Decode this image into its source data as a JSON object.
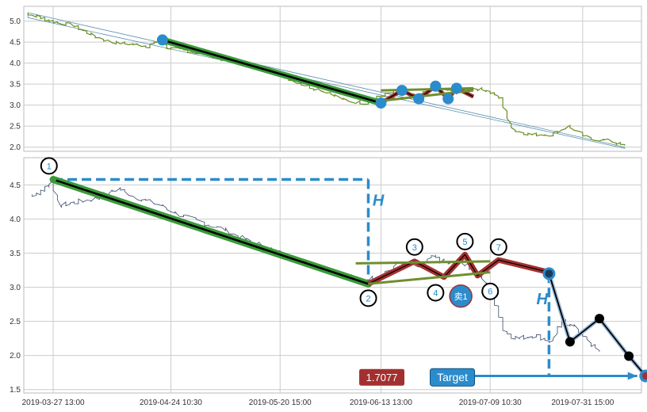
{
  "colors": {
    "price": "#6b8e23",
    "price_bottom": "#3a4a6a",
    "trend_green": "#3a9a3a",
    "wave_red": "#a33030",
    "blue": "#2b8ccc",
    "olive": "#6e8f2e",
    "grid": "#cccccc",
    "black": "#000000"
  },
  "chart_data": [
    {
      "type": "line",
      "panel": "top",
      "grid": true,
      "ylim": [
        1.9,
        5.35
      ],
      "x_domain": [
        "2019-03-20",
        "2019-08-14"
      ],
      "yticks": [
        "2.0",
        "2.5",
        "3.0",
        "3.5",
        "4.0",
        "4.5",
        "5.0"
      ],
      "series": [
        {
          "role": "price",
          "x": [
            "2019-03-21",
            "2019-03-24",
            "2019-03-27",
            "2019-04-01",
            "2019-04-05",
            "2019-04-10",
            "2019-04-15",
            "2019-04-19",
            "2019-04-22",
            "2019-04-24",
            "2019-04-28",
            "2019-05-03",
            "2019-05-08",
            "2019-05-13",
            "2019-05-18",
            "2019-05-22",
            "2019-05-27",
            "2019-06-01",
            "2019-06-05",
            "2019-06-10",
            "2019-06-13",
            "2019-06-18",
            "2019-06-22",
            "2019-06-26",
            "2019-07-01",
            "2019-07-05",
            "2019-07-09",
            "2019-07-12",
            "2019-07-15",
            "2019-07-19",
            "2019-07-24",
            "2019-07-28",
            "2019-08-02",
            "2019-08-07",
            "2019-08-11"
          ],
          "values": [
            5.2,
            5.1,
            5.0,
            4.9,
            4.7,
            4.5,
            4.45,
            4.4,
            4.55,
            4.35,
            4.3,
            4.2,
            4.05,
            3.95,
            3.8,
            3.65,
            3.45,
            3.3,
            3.1,
            3.05,
            3.2,
            3.35,
            3.2,
            3.45,
            3.3,
            3.4,
            3.35,
            3.15,
            2.4,
            2.3,
            2.3,
            2.5,
            2.2,
            2.15,
            2.0
          ]
        }
      ],
      "overlays": {
        "trend_channel": [
          [
            "2019-03-21",
            5.2
          ],
          [
            "2019-08-10",
            2.0
          ]
        ],
        "pole": [
          [
            "2019-04-22",
            4.55
          ],
          [
            "2019-06-13",
            3.05
          ]
        ],
        "flag_upper": [
          [
            "2019-06-13",
            3.35
          ],
          [
            "2019-07-05",
            3.4
          ]
        ],
        "flag_lower": [
          [
            "2019-06-13",
            3.1
          ],
          [
            "2019-07-05",
            3.35
          ]
        ],
        "wave": [
          [
            "2019-06-13",
            3.05
          ],
          [
            "2019-06-18",
            3.35
          ],
          [
            "2019-06-22",
            3.15
          ],
          [
            "2019-06-26",
            3.45
          ],
          [
            "2019-06-29",
            3.15
          ],
          [
            "2019-07-01",
            3.4
          ],
          [
            "2019-07-05",
            3.2
          ]
        ],
        "markers": [
          [
            "2019-04-22",
            4.55
          ],
          [
            "2019-06-13",
            3.05
          ],
          [
            "2019-06-18",
            3.35
          ],
          [
            "2019-06-22",
            3.15
          ],
          [
            "2019-06-26",
            3.45
          ],
          [
            "2019-06-29",
            3.15
          ],
          [
            "2019-07-01",
            3.4
          ]
        ]
      }
    },
    {
      "type": "line",
      "panel": "bottom",
      "grid": true,
      "ylim": [
        1.45,
        4.9
      ],
      "x_domain": [
        "2019-03-20",
        "2019-08-14"
      ],
      "yticks": [
        "1.5",
        "2.0",
        "2.5",
        "3.0",
        "3.5",
        "4.0",
        "4.5"
      ],
      "xticks": [
        {
          "x": "2019-03-27",
          "label": "2019-03-27 13:00"
        },
        {
          "x": "2019-04-24",
          "label": "2019-04-24 10:30"
        },
        {
          "x": "2019-05-20",
          "label": "2019-05-20 15:00"
        },
        {
          "x": "2019-06-13",
          "label": "2019-06-13 13:00"
        },
        {
          "x": "2019-07-09",
          "label": "2019-07-09 10:30"
        },
        {
          "x": "2019-07-31",
          "label": "2019-07-31 15:00"
        }
      ],
      "series": [
        {
          "role": "price",
          "x": [
            "2019-03-22",
            "2019-03-25",
            "2019-03-27",
            "2019-03-29",
            "2019-04-02",
            "2019-04-07",
            "2019-04-12",
            "2019-04-17",
            "2019-04-22",
            "2019-04-27",
            "2019-05-02",
            "2019-05-07",
            "2019-05-12",
            "2019-05-17",
            "2019-05-22",
            "2019-05-27",
            "2019-06-01",
            "2019-06-05",
            "2019-06-08",
            "2019-06-13",
            "2019-06-18",
            "2019-06-22",
            "2019-06-26",
            "2019-06-29",
            "2019-07-03",
            "2019-07-06",
            "2019-07-09",
            "2019-07-11",
            "2019-07-13",
            "2019-07-16",
            "2019-07-20",
            "2019-07-24",
            "2019-07-27",
            "2019-07-30",
            "2019-08-02",
            "2019-08-05"
          ],
          "values": [
            4.35,
            4.4,
            4.55,
            4.2,
            4.25,
            4.3,
            4.45,
            4.3,
            4.2,
            4.05,
            3.95,
            3.85,
            3.7,
            3.6,
            3.45,
            3.35,
            3.25,
            3.2,
            3.1,
            3.15,
            3.35,
            3.3,
            3.45,
            3.35,
            3.35,
            3.25,
            3.05,
            2.7,
            2.35,
            2.25,
            2.3,
            2.2,
            2.5,
            2.4,
            2.2,
            2.05
          ]
        }
      ],
      "overlays": {
        "pole": [
          [
            "2019-03-27",
            4.58
          ],
          [
            "2019-06-10",
            3.05
          ]
        ],
        "flag_upper": [
          [
            "2019-06-07",
            3.35
          ],
          [
            "2019-07-09",
            3.38
          ]
        ],
        "flag_lower": [
          [
            "2019-06-10",
            3.05
          ],
          [
            "2019-07-09",
            3.22
          ]
        ],
        "wave": [
          [
            "2019-06-10",
            3.05
          ],
          [
            "2019-06-21",
            3.38
          ],
          [
            "2019-06-28",
            3.15
          ],
          [
            "2019-07-03",
            3.48
          ],
          [
            "2019-07-06",
            3.17
          ],
          [
            "2019-07-11",
            3.4
          ],
          [
            "2019-07-23",
            3.22
          ]
        ],
        "projection": [
          [
            "2019-07-23",
            3.2
          ],
          [
            "2019-07-28",
            2.2
          ],
          [
            "2019-08-04",
            2.54
          ],
          [
            "2019-08-11",
            1.99
          ],
          [
            "2019-08-15",
            1.7
          ]
        ],
        "h_top": [
          [
            "2019-03-27",
            4.58
          ],
          [
            "2019-06-10",
            4.58
          ]
        ],
        "h_bottom": [
          [
            "2019-07-23",
            3.2
          ],
          [
            "2019-07-23",
            1.7
          ]
        ],
        "target_line": [
          [
            "2019-07-04",
            1.7
          ],
          [
            "2019-08-13",
            1.7
          ]
        ]
      },
      "point_labels": [
        {
          "text": "1",
          "x": "2019-03-26",
          "y": 4.78
        },
        {
          "text": "2",
          "x": "2019-06-10",
          "y": 2.84
        },
        {
          "text": "3",
          "x": "2019-06-21",
          "y": 3.59
        },
        {
          "text": "4",
          "x": "2019-06-26",
          "y": 2.92
        },
        {
          "text": "5",
          "x": "2019-07-03",
          "y": 3.67
        },
        {
          "text": "6",
          "x": "2019-07-09",
          "y": 2.94
        },
        {
          "text": "7",
          "x": "2019-07-11",
          "y": 3.59
        }
      ],
      "annotations": [
        {
          "text": "H",
          "x": "2019-06-11",
          "y": 4.2
        },
        {
          "text": "H",
          "x": "2019-07-20",
          "y": 2.75
        },
        {
          "text": "卖1",
          "x": "2019-07-02",
          "y": 2.87
        },
        {
          "text": "1.7077",
          "x": "2019-06-10",
          "y": 1.68,
          "style": "badge-red"
        },
        {
          "text": "Target",
          "x": "2019-06-30",
          "y": 1.68,
          "style": "badge-blue"
        }
      ]
    }
  ]
}
